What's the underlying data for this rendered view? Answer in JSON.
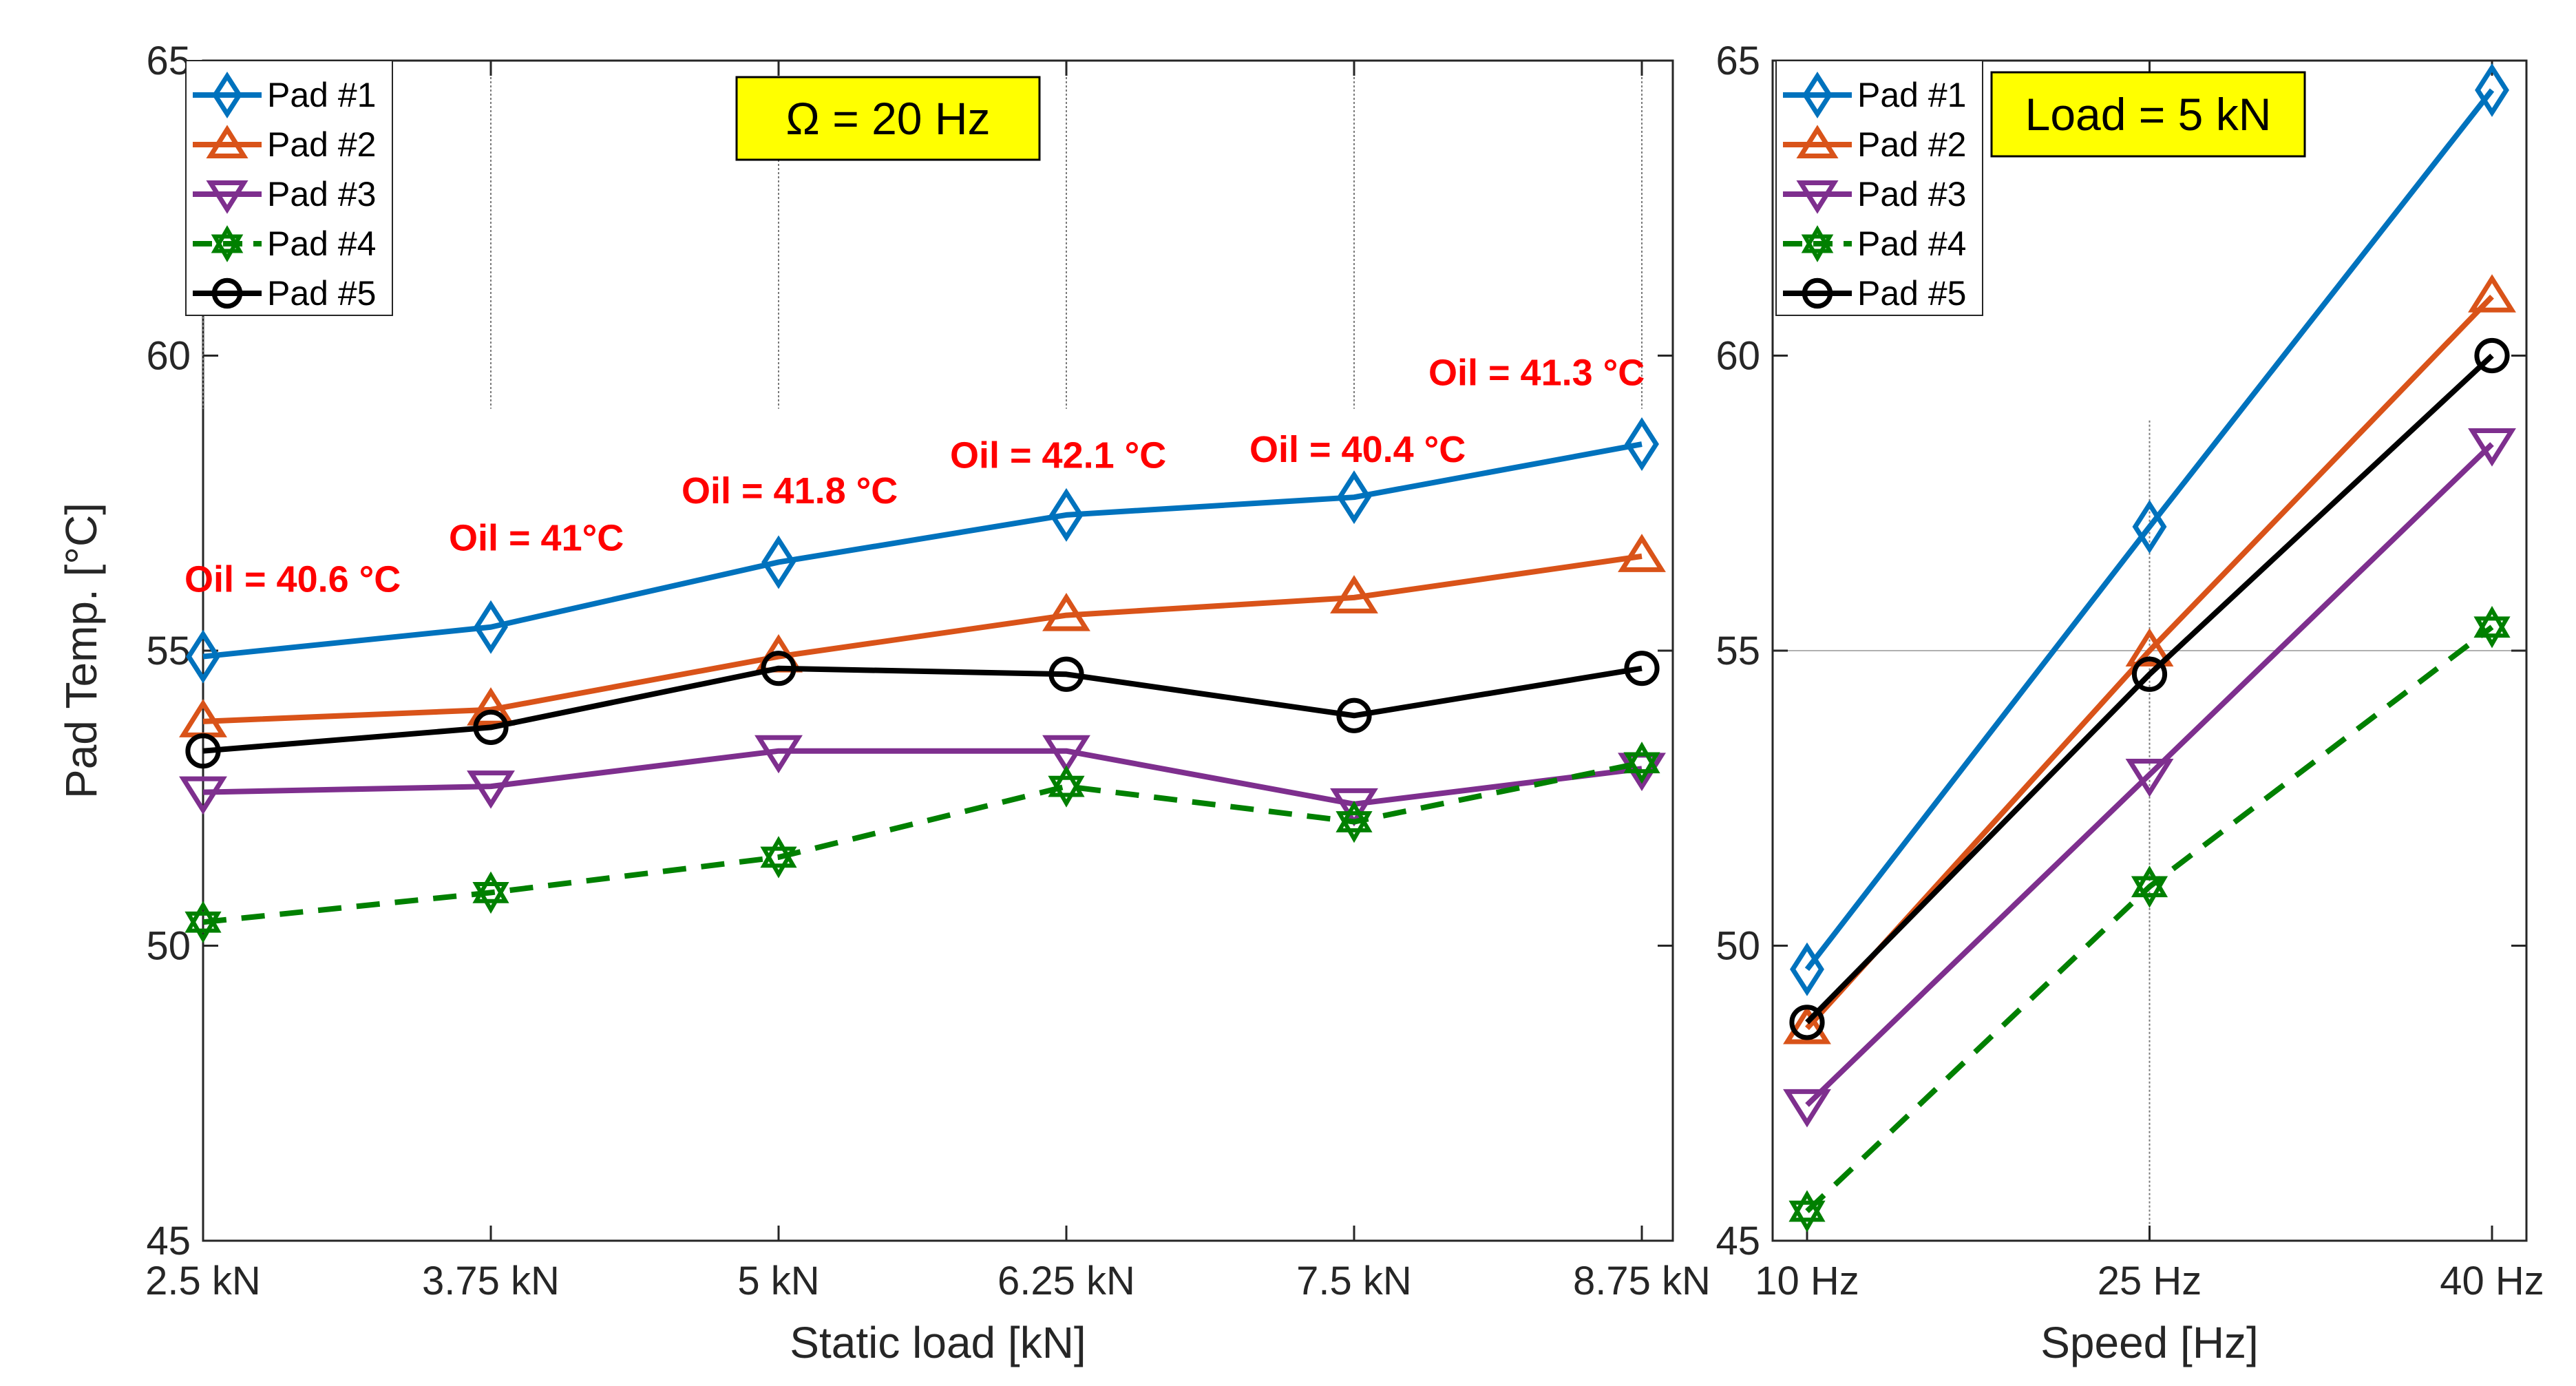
{
  "chart_data": [
    {
      "type": "line",
      "xlabel": "Static load [kN]",
      "ylabel": "Pad Temp. [°C]",
      "ylim": [
        45,
        65
      ],
      "yticks": [
        45,
        50,
        55,
        60,
        65
      ],
      "categories": [
        "2.5 kN",
        "3.75 kN",
        "5 kN",
        "6.25 kN",
        "7.5 kN",
        "8.75 kN"
      ],
      "annotation": "Ω = 20 Hz",
      "oil_labels": [
        "Oil = 40.6 °C",
        "Oil = 41°C",
        "Oil = 41.8 °C",
        "Oil = 42.1 °C",
        "Oil = 40.4 °C",
        "Oil = 41.3 °C"
      ],
      "legend": [
        "Pad #1",
        "Pad #2",
        "Pad #3",
        "Pad #4",
        "Pad #5"
      ],
      "series": [
        {
          "name": "Pad #1",
          "marker": "diamond",
          "color": "#0072BD",
          "dashed": false,
          "values": [
            54.9,
            55.4,
            56.5,
            57.3,
            57.6,
            58.5
          ]
        },
        {
          "name": "Pad #2",
          "marker": "triangle-up",
          "color": "#D95319",
          "dashed": false,
          "values": [
            53.8,
            54.0,
            54.9,
            55.6,
            55.9,
            56.6
          ]
        },
        {
          "name": "Pad #3",
          "marker": "triangle-down",
          "color": "#7E2F8E",
          "dashed": false,
          "values": [
            52.6,
            52.7,
            53.3,
            53.3,
            52.4,
            53.0
          ]
        },
        {
          "name": "Pad #4",
          "marker": "hexagram",
          "color": "#008000",
          "dashed": true,
          "values": [
            50.4,
            50.9,
            51.5,
            52.7,
            52.1,
            53.1
          ]
        },
        {
          "name": "Pad #5",
          "marker": "circle",
          "color": "#000000",
          "dashed": false,
          "values": [
            53.3,
            53.7,
            54.7,
            54.6,
            53.9,
            54.7
          ]
        }
      ]
    },
    {
      "type": "line",
      "xlabel": "Speed [Hz]",
      "ylabel": "",
      "ylim": [
        45,
        65
      ],
      "yticks": [
        45,
        50,
        55,
        60,
        65
      ],
      "categories": [
        "10 Hz",
        "25 Hz",
        "40 Hz"
      ],
      "annotation": "Load = 5 kN",
      "legend": [
        "Pad #1",
        "Pad #2",
        "Pad #3",
        "Pad #4",
        "Pad #5"
      ],
      "series": [
        {
          "name": "Pad #1",
          "marker": "diamond",
          "color": "#0072BD",
          "dashed": false,
          "values": [
            49.6,
            57.1,
            64.5
          ]
        },
        {
          "name": "Pad #2",
          "marker": "triangle-up",
          "color": "#D95319",
          "dashed": false,
          "values": [
            48.6,
            55.0,
            61.0
          ]
        },
        {
          "name": "Pad #3",
          "marker": "triangle-down",
          "color": "#7E2F8E",
          "dashed": false,
          "values": [
            47.3,
            52.9,
            58.5
          ]
        },
        {
          "name": "Pad #4",
          "marker": "hexagram",
          "color": "#008000",
          "dashed": true,
          "values": [
            45.5,
            51.0,
            55.4
          ]
        },
        {
          "name": "Pad #5",
          "marker": "circle",
          "color": "#000000",
          "dashed": false,
          "values": [
            48.7,
            54.6,
            60.0
          ]
        }
      ]
    }
  ]
}
